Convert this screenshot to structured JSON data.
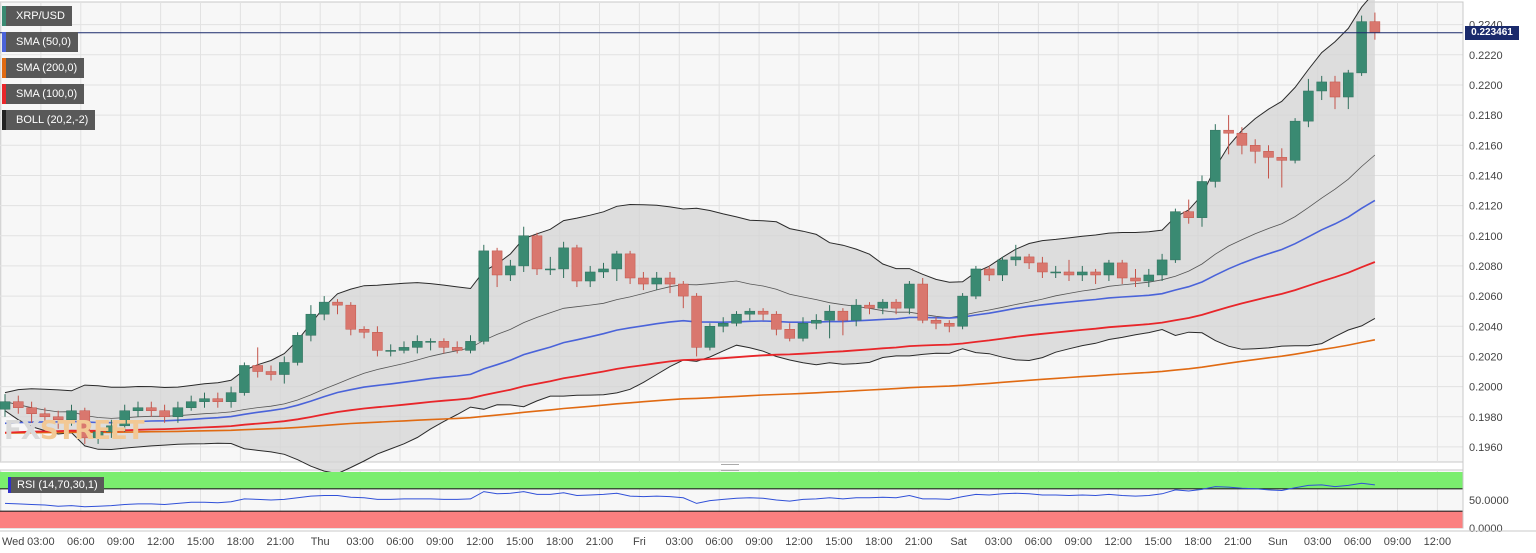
{
  "symbol": "XRP/USD",
  "indicators": [
    {
      "label": "SMA (50,0)",
      "color": "#4a63d9"
    },
    {
      "label": "SMA (200,0)",
      "color": "#e06a12"
    },
    {
      "label": "SMA (100,0)",
      "color": "#e8262a"
    },
    {
      "label": "BOLL (20,2,-2)",
      "color": "#222222"
    }
  ],
  "rsi_label": "RSI (14,70,30,1)",
  "current_price": "0.223461",
  "logo": {
    "part1": "FX",
    "part2": "STREET"
  },
  "colors": {
    "up": "#3a8a72",
    "down": "#d9776e",
    "sma50": "#4a63d9",
    "sma100": "#e8262a",
    "sma200": "#e06a12",
    "boll": "#2a2a2a",
    "rsi_line": "#3050d8",
    "rsi_overbought": "#7aee6e",
    "rsi_oversold": "#fb8080",
    "price_line": "#1a2a6c"
  },
  "chart_data": {
    "type": "candlestick",
    "title": "XRP/USD",
    "price_axis": {
      "ylim": [
        0.195,
        0.2255
      ],
      "ticks": [
        "0.1960",
        "0.1980",
        "0.2000",
        "0.2020",
        "0.2040",
        "0.2060",
        "0.2080",
        "0.2100",
        "0.2120",
        "0.2140",
        "0.2160",
        "0.2180",
        "0.2200",
        "0.2220",
        "0.2240"
      ]
    },
    "time_axis": {
      "ticks": [
        "Wed",
        "03:00",
        "06:00",
        "09:00",
        "12:00",
        "15:00",
        "18:00",
        "21:00",
        "Thu",
        "03:00",
        "06:00",
        "09:00",
        "12:00",
        "15:00",
        "18:00",
        "21:00",
        "Fri",
        "03:00",
        "06:00",
        "09:00",
        "12:00",
        "15:00",
        "18:00",
        "21:00",
        "Sat",
        "03:00",
        "06:00",
        "09:00",
        "12:00",
        "15:00",
        "18:00",
        "21:00",
        "Sun",
        "03:00",
        "06:00",
        "09:00",
        "12:00"
      ]
    },
    "rsi_axis": {
      "ylim": [
        0,
        100
      ],
      "ticks": [
        "0.0000",
        "50.0000"
      ],
      "overbought": 70,
      "oversold": 30
    },
    "candles": [
      [
        0.1985,
        0.199,
        0.198,
        0.1995
      ],
      [
        0.199,
        0.1986,
        0.1982,
        0.1994
      ],
      [
        0.1986,
        0.1982,
        0.1976,
        0.199
      ],
      [
        0.1982,
        0.198,
        0.1975,
        0.1986
      ],
      [
        0.198,
        0.1978,
        0.1972,
        0.1984
      ],
      [
        0.1978,
        0.1984,
        0.1974,
        0.1988
      ],
      [
        0.1984,
        0.1966,
        0.1962,
        0.1986
      ],
      [
        0.1966,
        0.197,
        0.1962,
        0.1974
      ],
      [
        0.197,
        0.1974,
        0.1966,
        0.1978
      ],
      [
        0.1974,
        0.1984,
        0.197,
        0.1988
      ],
      [
        0.1984,
        0.1986,
        0.198,
        0.199
      ],
      [
        0.1986,
        0.1984,
        0.198,
        0.199
      ],
      [
        0.1984,
        0.198,
        0.1976,
        0.1988
      ],
      [
        0.198,
        0.1986,
        0.1976,
        0.199
      ],
      [
        0.1986,
        0.199,
        0.1984,
        0.1994
      ],
      [
        0.199,
        0.1992,
        0.1986,
        0.1996
      ],
      [
        0.1992,
        0.199,
        0.1986,
        0.1996
      ],
      [
        0.199,
        0.1996,
        0.1986,
        0.2
      ],
      [
        0.1996,
        0.2014,
        0.1994,
        0.2016
      ],
      [
        0.2014,
        0.201,
        0.2006,
        0.2026
      ],
      [
        0.201,
        0.2008,
        0.2004,
        0.2014
      ],
      [
        0.2008,
        0.2016,
        0.2002,
        0.202
      ],
      [
        0.2016,
        0.2034,
        0.2014,
        0.2036
      ],
      [
        0.2034,
        0.2048,
        0.203,
        0.2054
      ],
      [
        0.2048,
        0.2056,
        0.2044,
        0.206
      ],
      [
        0.2056,
        0.2054,
        0.2048,
        0.2058
      ],
      [
        0.2054,
        0.2038,
        0.2034,
        0.2056
      ],
      [
        0.2038,
        0.2036,
        0.2032,
        0.204
      ],
      [
        0.2036,
        0.2024,
        0.202,
        0.204
      ],
      [
        0.2024,
        0.2024,
        0.202,
        0.2028
      ],
      [
        0.2024,
        0.2026,
        0.2022,
        0.203
      ],
      [
        0.2026,
        0.203,
        0.2022,
        0.2034
      ],
      [
        0.203,
        0.203,
        0.2024,
        0.2032
      ],
      [
        0.203,
        0.2026,
        0.2022,
        0.2032
      ],
      [
        0.2026,
        0.2024,
        0.2022,
        0.203
      ],
      [
        0.2024,
        0.203,
        0.2022,
        0.2034
      ],
      [
        0.203,
        0.209,
        0.2028,
        0.2094
      ],
      [
        0.209,
        0.2074,
        0.2066,
        0.2092
      ],
      [
        0.2074,
        0.208,
        0.207,
        0.2084
      ],
      [
        0.208,
        0.21,
        0.2076,
        0.2106
      ],
      [
        0.21,
        0.2078,
        0.2074,
        0.2102
      ],
      [
        0.2078,
        0.2078,
        0.2074,
        0.2086
      ],
      [
        0.2078,
        0.2092,
        0.2072,
        0.2096
      ],
      [
        0.2092,
        0.207,
        0.2066,
        0.2094
      ],
      [
        0.207,
        0.2076,
        0.2066,
        0.208
      ],
      [
        0.2076,
        0.2078,
        0.2072,
        0.2082
      ],
      [
        0.2078,
        0.2088,
        0.207,
        0.209
      ],
      [
        0.2088,
        0.2072,
        0.2068,
        0.209
      ],
      [
        0.2072,
        0.2068,
        0.2064,
        0.2076
      ],
      [
        0.2068,
        0.2072,
        0.2064,
        0.2076
      ],
      [
        0.2072,
        0.2068,
        0.2062,
        0.2076
      ],
      [
        0.2068,
        0.206,
        0.2052,
        0.207
      ],
      [
        0.206,
        0.2026,
        0.202,
        0.2062
      ],
      [
        0.2026,
        0.204,
        0.2024,
        0.2042
      ],
      [
        0.204,
        0.2042,
        0.2036,
        0.2046
      ],
      [
        0.2042,
        0.2048,
        0.204,
        0.205
      ],
      [
        0.2048,
        0.205,
        0.2044,
        0.2052
      ],
      [
        0.205,
        0.2048,
        0.2044,
        0.2052
      ],
      [
        0.2048,
        0.2038,
        0.2034,
        0.205
      ],
      [
        0.2038,
        0.2032,
        0.203,
        0.2042
      ],
      [
        0.2032,
        0.2042,
        0.203,
        0.2046
      ],
      [
        0.2042,
        0.2044,
        0.2038,
        0.2048
      ],
      [
        0.2044,
        0.205,
        0.2032,
        0.2054
      ],
      [
        0.205,
        0.2044,
        0.2034,
        0.2052
      ],
      [
        0.2044,
        0.2054,
        0.204,
        0.2058
      ],
      [
        0.2054,
        0.2052,
        0.2048,
        0.2056
      ],
      [
        0.2052,
        0.2056,
        0.2048,
        0.2058
      ],
      [
        0.2056,
        0.2052,
        0.2048,
        0.2058
      ],
      [
        0.2052,
        0.2068,
        0.2048,
        0.207
      ],
      [
        0.2068,
        0.2044,
        0.2042,
        0.2072
      ],
      [
        0.2044,
        0.2042,
        0.2038,
        0.2046
      ],
      [
        0.2042,
        0.204,
        0.2036,
        0.2044
      ],
      [
        0.204,
        0.206,
        0.2038,
        0.2062
      ],
      [
        0.206,
        0.2078,
        0.2058,
        0.208
      ],
      [
        0.2078,
        0.2074,
        0.207,
        0.208
      ],
      [
        0.2074,
        0.2084,
        0.207,
        0.2086
      ],
      [
        0.2084,
        0.2086,
        0.208,
        0.2094
      ],
      [
        0.2086,
        0.2082,
        0.2078,
        0.2088
      ],
      [
        0.2082,
        0.2076,
        0.2072,
        0.2086
      ],
      [
        0.2076,
        0.2076,
        0.2072,
        0.208
      ],
      [
        0.2076,
        0.2074,
        0.207,
        0.2084
      ],
      [
        0.2074,
        0.2076,
        0.207,
        0.208
      ],
      [
        0.2076,
        0.2074,
        0.2068,
        0.2078
      ],
      [
        0.2074,
        0.2082,
        0.207,
        0.2084
      ],
      [
        0.2082,
        0.2072,
        0.2068,
        0.2084
      ],
      [
        0.2072,
        0.207,
        0.2066,
        0.2078
      ],
      [
        0.207,
        0.2074,
        0.2066,
        0.2078
      ],
      [
        0.2074,
        0.2084,
        0.207,
        0.2088
      ],
      [
        0.2084,
        0.2116,
        0.2082,
        0.2118
      ],
      [
        0.2116,
        0.2112,
        0.2108,
        0.2124
      ],
      [
        0.2112,
        0.2136,
        0.2106,
        0.214
      ],
      [
        0.2136,
        0.217,
        0.2132,
        0.2174
      ],
      [
        0.217,
        0.2168,
        0.2154,
        0.218
      ],
      [
        0.2168,
        0.216,
        0.2154,
        0.2172
      ],
      [
        0.216,
        0.2156,
        0.2148,
        0.2164
      ],
      [
        0.2156,
        0.2152,
        0.2138,
        0.216
      ],
      [
        0.2152,
        0.215,
        0.2132,
        0.2158
      ],
      [
        0.215,
        0.2176,
        0.2148,
        0.2178
      ],
      [
        0.2176,
        0.2196,
        0.2172,
        0.2204
      ],
      [
        0.2196,
        0.2202,
        0.219,
        0.2206
      ],
      [
        0.2202,
        0.2192,
        0.2184,
        0.2206
      ],
      [
        0.2192,
        0.2208,
        0.2184,
        0.221
      ],
      [
        0.2208,
        0.2242,
        0.2206,
        0.2246
      ],
      [
        0.2242,
        0.2235,
        0.223,
        0.2248
      ]
    ],
    "rsi": [
      44,
      43,
      42,
      41,
      39,
      40,
      38,
      39,
      40,
      42,
      43,
      43,
      42,
      44,
      46,
      46,
      45,
      47,
      52,
      51,
      50,
      51,
      54,
      57,
      58,
      58,
      55,
      54,
      51,
      51,
      52,
      52,
      52,
      51,
      51,
      52,
      65,
      61,
      62,
      65,
      60,
      60,
      63,
      58,
      59,
      60,
      62,
      57,
      56,
      57,
      56,
      54,
      44,
      49,
      51,
      53,
      54,
      53,
      50,
      48,
      51,
      52,
      54,
      52,
      54,
      54,
      55,
      54,
      58,
      52,
      52,
      51,
      56,
      60,
      59,
      61,
      62,
      61,
      59,
      59,
      58,
      59,
      58,
      60,
      58,
      57,
      58,
      61,
      68,
      66,
      69,
      74,
      73,
      71,
      70,
      68,
      67,
      72,
      76,
      77,
      74,
      76,
      80,
      77
    ]
  }
}
